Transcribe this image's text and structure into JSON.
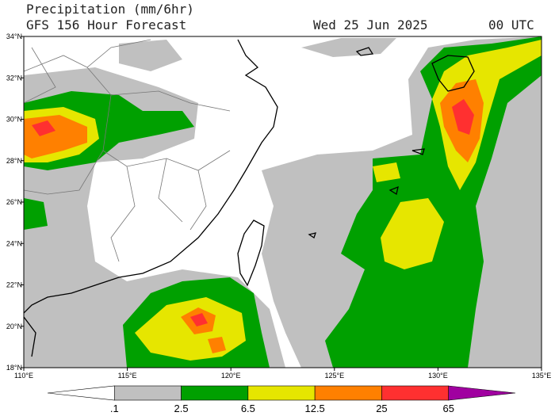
{
  "header": {
    "title": "Precipitation (mm/6hr)",
    "subtitle": "GFS 156 Hour Forecast",
    "date": "Wed 25 Jun 2025",
    "time": "00 UTC"
  },
  "map": {
    "lonlim": [
      110,
      135
    ],
    "latlim": [
      18,
      34
    ],
    "lonticks": [
      {
        "value": 110,
        "label": "110°E"
      },
      {
        "value": 115,
        "label": "115°E"
      },
      {
        "value": 120,
        "label": "120°E"
      },
      {
        "value": 125,
        "label": "125°E"
      },
      {
        "value": 130,
        "label": "130°E"
      },
      {
        "value": 135,
        "label": "135°E"
      }
    ],
    "latticks": [
      {
        "value": 18,
        "label": "18°N"
      },
      {
        "value": 20,
        "label": "20°N"
      },
      {
        "value": 22,
        "label": "22°N"
      },
      {
        "value": 24,
        "label": "24°N"
      },
      {
        "value": 26,
        "label": "26°N"
      },
      {
        "value": 28,
        "label": "28°N"
      },
      {
        "value": 30,
        "label": "30°N"
      },
      {
        "value": 32,
        "label": "32°N"
      },
      {
        "value": 34,
        "label": "34°N"
      }
    ]
  },
  "colorbar": {
    "levels": [
      {
        "value": 0.1,
        "label": ".1"
      },
      2.5,
      6.5,
      12.5,
      25,
      65
    ],
    "colors": [
      "#ffffff",
      "#c0c0c0",
      "#00a000",
      "#e6e600",
      "#ff8000",
      "#ff3030",
      "#a000a0"
    ]
  }
}
